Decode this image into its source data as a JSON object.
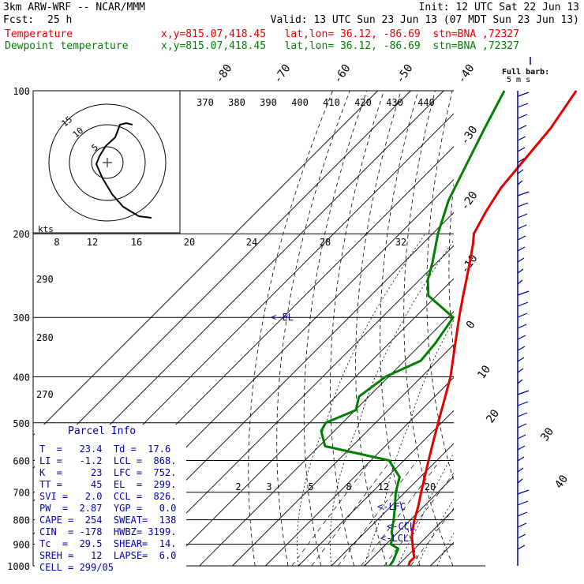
{
  "header": {
    "model": "3km ARW-WRF -- NCAR/MMM",
    "init": "Init: 12 UTC Sat 22 Jun 13",
    "fcst_label": "Fcst:",
    "fcst_value": "25 h",
    "valid": "Valid: 13 UTC Sun 23 Jun 13 (07 MDT Sun 23 Jun 13)",
    "temp_label": "Temperature",
    "temp_loc": "x,y=815.07,418.45   lat,lon= 36.12, -86.69  stn=BNA ,72327",
    "dew_label": "Dewpoint temperature",
    "dew_loc": "x,y=815.07,418.45   lat,lon= 36.12, -86.69  stn=BNA ,72327"
  },
  "barb_legend": {
    "line1": "Full barb:",
    "line2": "5 m s"
  },
  "hodograph": {
    "units": "kts",
    "ring_labels": [
      "5",
      "10",
      "15"
    ]
  },
  "parcel_info": {
    "title": "Parcel Info",
    "rows": [
      "T  =   23.4  Td =  17.6",
      "LI =   -1.2  LCL =  868.",
      "K  =     23  LFC =  752.",
      "TT =     45  EL  =  299.",
      "SVI =   2.0  CCL =  826.",
      "PW  =  2.87  YGP =   0.0",
      "CAPE =  254  SWEAT=  138",
      "CIN  = -178  HWBZ= 3199.",
      "Tc  =  29.5  SHEAR=  14.",
      "SREH =   12  LAPSE=  6.0",
      "CELL = 299/05"
    ]
  },
  "level_labels": {
    "el": "EL",
    "lfc": "LFC",
    "ccl": "CCL",
    "lcl": "LCL"
  },
  "chart_data": {
    "type": "line",
    "title": "",
    "ylabel": "",
    "y_scale": "log-pressure",
    "ylim": [
      1000,
      100
    ],
    "pressure_ticks": [
      "100",
      "200",
      "300",
      "400",
      "500",
      "600",
      "700",
      "800",
      "900",
      "1000"
    ],
    "isotherm_labels": [
      "-80",
      "-70",
      "-60",
      "-50",
      "-40",
      "-30",
      "-20",
      "-10",
      "0",
      "10",
      "20",
      "30",
      "40"
    ],
    "theta_labels": [
      "370",
      "380",
      "390",
      "400",
      "410",
      "420",
      "430",
      "440"
    ],
    "adiabat_labels": [
      "290",
      "280",
      "270"
    ],
    "mixing_ratio_upper": [
      "8",
      "12",
      "16",
      "20",
      "24",
      "28",
      "32"
    ],
    "mixing_ratio_lower": [
      "2",
      "3",
      "5",
      "8",
      "12",
      "20"
    ],
    "series": [
      {
        "name": "Temperature",
        "color": "#e00000",
        "p": [
          1000,
          980,
          960,
          940,
          920,
          900,
          870,
          850,
          800,
          750,
          700,
          650,
          600,
          550,
          500,
          450,
          400,
          350,
          300,
          270,
          250,
          230,
          210,
          200,
          180,
          160,
          140,
          120,
          100
        ],
        "t": [
          23.4,
          22.5,
          22.6,
          21.0,
          19.5,
          18.0,
          15.7,
          14.3,
          11.2,
          8.3,
          4.9,
          1.3,
          -2.5,
          -6.6,
          -11.0,
          -15.8,
          -21.2,
          -28.4,
          -36.6,
          -42.0,
          -45.8,
          -50.0,
          -54.7,
          -57.5,
          -60.5,
          -63.2,
          -64.6,
          -66.2,
          -69.8
        ]
      },
      {
        "name": "Dewpoint temperature",
        "color": "#008000",
        "p": [
          1000,
          980,
          950,
          920,
          900,
          870,
          850,
          800,
          760,
          700,
          650,
          600,
          560,
          520,
          500,
          470,
          440,
          400,
          370,
          340,
          300,
          270,
          250,
          230,
          200,
          170,
          140,
          120,
          100
        ],
        "t": [
          17.6,
          17.3,
          16.2,
          15.0,
          11.4,
          9.8,
          8.1,
          4.9,
          2.0,
          -2.8,
          -6.3,
          -14.5,
          -38.2,
          -44.0,
          -45.1,
          -39.8,
          -43.0,
          -40.9,
          -35.1,
          -36.0,
          -38.4,
          -52.5,
          -57.5,
          -61.3,
          -68.4,
          -75.3,
          -81.4,
          -86.2,
          -91.6
        ]
      }
    ]
  },
  "colors": {
    "temperature": "#e00000",
    "dewpoint": "#008000",
    "annotations": "#0000b0",
    "grid": "#000000"
  }
}
